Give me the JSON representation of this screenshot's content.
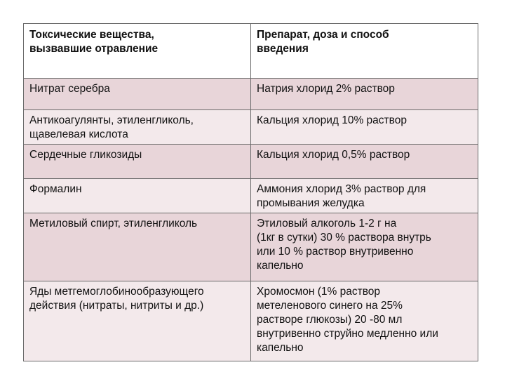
{
  "table": {
    "headers": [
      "Токсические вещества,\nвызвавшие отравление",
      "Препарат, доза и способ\nвведения"
    ],
    "rows": [
      [
        "Нитрат серебра",
        "Натрия хлорид 2% раствор"
      ],
      [
        "Антикоагулянты, этиленгликоль,\nщавелевая кислота",
        "Кальция хлорид 10% раствор"
      ],
      [
        "Сердечные гликозиды",
        "Кальция хлорид 0,5% раствор"
      ],
      [
        "Формалин",
        "Аммония хлорид 3% раствор для\nпромывания желудка"
      ],
      [
        "Метиловый спирт, этиленгликоль",
        "Этиловый алкоголь 1-2 г на\n(1кг в сутки) 30 % раствора внутрь\nили 10 % раствор внутривенно\nкапельно"
      ],
      [
        "Яды метгемоглобинообразующего\nдействия (нитраты, нитриты и др.)",
        "Хромосмон (1% раствор\nметеленового синего на 25%\nрастворе глюкозы) 20 -80 мл\nвнутривенно струйно медленно или\nкапельно"
      ]
    ],
    "colors": {
      "header_bg": "#ffffff",
      "row_odd_bg": "#e8d5d9",
      "row_even_bg": "#f3e9eb",
      "border": "#6b6b6b"
    }
  }
}
